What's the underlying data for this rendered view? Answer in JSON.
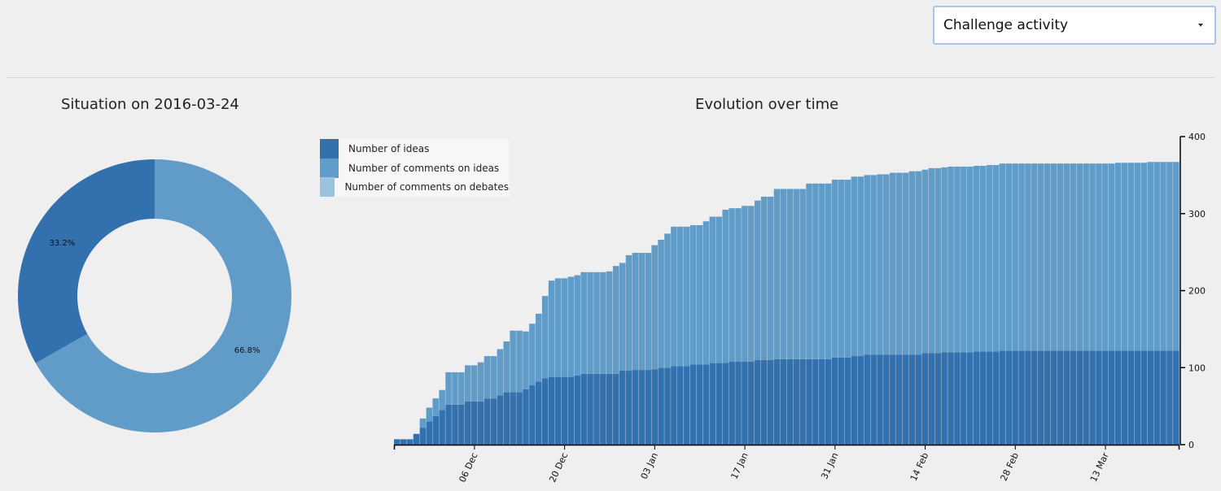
{
  "header": {
    "dropdown": {
      "selected": "Challenge activity"
    }
  },
  "donut": {
    "title": "Situation on 2016-03-24",
    "slices": [
      {
        "label": "Number of ideas",
        "value": 33.2,
        "text": "33.2%",
        "color": "#3370ae"
      },
      {
        "label": "Number of comments on ideas",
        "value": 66.8,
        "text": "66.8%",
        "color": "#619cc9"
      }
    ]
  },
  "evolution": {
    "title": "Evolution over time",
    "legend": [
      {
        "label": "Number of ideas",
        "color": "#3370ae"
      },
      {
        "label": "Number of comments on ideas",
        "color": "#619cc9"
      },
      {
        "label": "Number of comments on debates",
        "color": "#9cc2de"
      }
    ]
  },
  "chart_data": [
    {
      "type": "pie",
      "title": "Situation on 2016-03-24",
      "categories": [
        "Number of ideas",
        "Number of comments on ideas"
      ],
      "values": [
        33.2,
        66.8
      ],
      "labels": [
        "33.2%",
        "66.8%"
      ]
    },
    {
      "type": "bar",
      "stacked": true,
      "title": "Evolution over time",
      "x_start": "2015-11-24",
      "x_end": "2016-03-24",
      "x_ticks": [
        "06 Dec",
        "20 Dec",
        "03 Jan",
        "17 Jan",
        "31 Jan",
        "14 Feb",
        "28 Feb",
        "13 Mar"
      ],
      "y_ticks": [
        0,
        100,
        200,
        300,
        400
      ],
      "ylim": [
        0,
        400
      ],
      "y_axis_position": "right",
      "legend_position": "top-left",
      "series": [
        {
          "name": "Number of ideas",
          "color": "#3370ae",
          "points": [
            [
              "2015-11-24",
              7
            ],
            [
              "2015-11-27",
              14
            ],
            [
              "2015-11-28",
              22
            ],
            [
              "2015-11-29",
              30
            ],
            [
              "2015-11-30",
              37
            ],
            [
              "2015-12-01",
              45
            ],
            [
              "2015-12-02",
              52
            ],
            [
              "2015-12-05",
              56
            ],
            [
              "2015-12-08",
              60
            ],
            [
              "2015-12-10",
              64
            ],
            [
              "2015-12-11",
              68
            ],
            [
              "2015-12-14",
              72
            ],
            [
              "2015-12-15",
              77
            ],
            [
              "2015-12-16",
              82
            ],
            [
              "2015-12-17",
              86
            ],
            [
              "2015-12-18",
              88
            ],
            [
              "2015-12-22",
              90
            ],
            [
              "2015-12-23",
              92
            ],
            [
              "2015-12-29",
              96
            ],
            [
              "2015-12-31",
              97
            ],
            [
              "2016-01-03",
              98
            ],
            [
              "2016-01-04",
              100
            ],
            [
              "2016-01-06",
              102
            ],
            [
              "2016-01-09",
              104
            ],
            [
              "2016-01-12",
              106
            ],
            [
              "2016-01-15",
              108
            ],
            [
              "2016-01-19",
              110
            ],
            [
              "2016-01-22",
              111
            ],
            [
              "2016-01-31",
              113
            ],
            [
              "2016-02-03",
              115
            ],
            [
              "2016-02-05",
              117
            ],
            [
              "2016-02-14",
              119
            ],
            [
              "2016-02-17",
              120
            ],
            [
              "2016-02-22",
              121
            ],
            [
              "2016-02-26",
              122
            ],
            [
              "2016-03-24",
              122
            ]
          ]
        },
        {
          "name": "Number of comments on ideas",
          "color": "#619cc9",
          "points": [
            [
              "2015-11-24",
              0
            ],
            [
              "2015-11-27",
              0
            ],
            [
              "2015-11-28",
              12
            ],
            [
              "2015-11-29",
              18
            ],
            [
              "2015-11-30",
              23
            ],
            [
              "2015-12-01",
              26
            ],
            [
              "2015-12-02",
              42
            ],
            [
              "2015-12-05",
              47
            ],
            [
              "2015-12-07",
              51
            ],
            [
              "2015-12-08",
              55
            ],
            [
              "2015-12-10",
              60
            ],
            [
              "2015-12-11",
              66
            ],
            [
              "2015-12-12",
              80
            ],
            [
              "2015-12-14",
              75
            ],
            [
              "2015-12-15",
              80
            ],
            [
              "2015-12-16",
              88
            ],
            [
              "2015-12-17",
              107
            ],
            [
              "2015-12-18",
              125
            ],
            [
              "2015-12-19",
              128
            ],
            [
              "2015-12-21",
              130
            ],
            [
              "2015-12-23",
              132
            ],
            [
              "2015-12-27",
              133
            ],
            [
              "2015-12-28",
              140
            ],
            [
              "2015-12-30",
              150
            ],
            [
              "2015-12-31",
              152
            ],
            [
              "2016-01-02",
              152
            ],
            [
              "2016-01-03",
              161
            ],
            [
              "2016-01-04",
              166
            ],
            [
              "2016-01-05",
              174
            ],
            [
              "2016-01-06",
              181
            ],
            [
              "2016-01-07",
              181
            ],
            [
              "2016-01-09",
              181
            ],
            [
              "2016-01-11",
              186
            ],
            [
              "2016-01-12",
              190
            ],
            [
              "2016-01-14",
              199
            ],
            [
              "2016-01-17",
              202
            ],
            [
              "2016-01-19",
              207
            ],
            [
              "2016-01-20",
              212
            ],
            [
              "2016-01-22",
              221
            ],
            [
              "2016-01-27",
              228
            ],
            [
              "2016-01-31",
              231
            ],
            [
              "2016-02-03",
              233
            ],
            [
              "2016-02-07",
              234
            ],
            [
              "2016-02-09",
              236
            ],
            [
              "2016-02-12",
              238
            ],
            [
              "2016-02-15",
              240
            ],
            [
              "2016-02-18",
              241
            ],
            [
              "2016-02-21",
              241
            ],
            [
              "2016-02-24",
              242
            ],
            [
              "2016-02-26",
              243
            ],
            [
              "2016-03-05",
              243
            ],
            [
              "2016-03-15",
              244
            ],
            [
              "2016-03-20",
              245
            ],
            [
              "2016-03-24",
              245
            ]
          ]
        },
        {
          "name": "Number of comments on debates",
          "color": "#9cc2de",
          "points": []
        }
      ]
    }
  ]
}
